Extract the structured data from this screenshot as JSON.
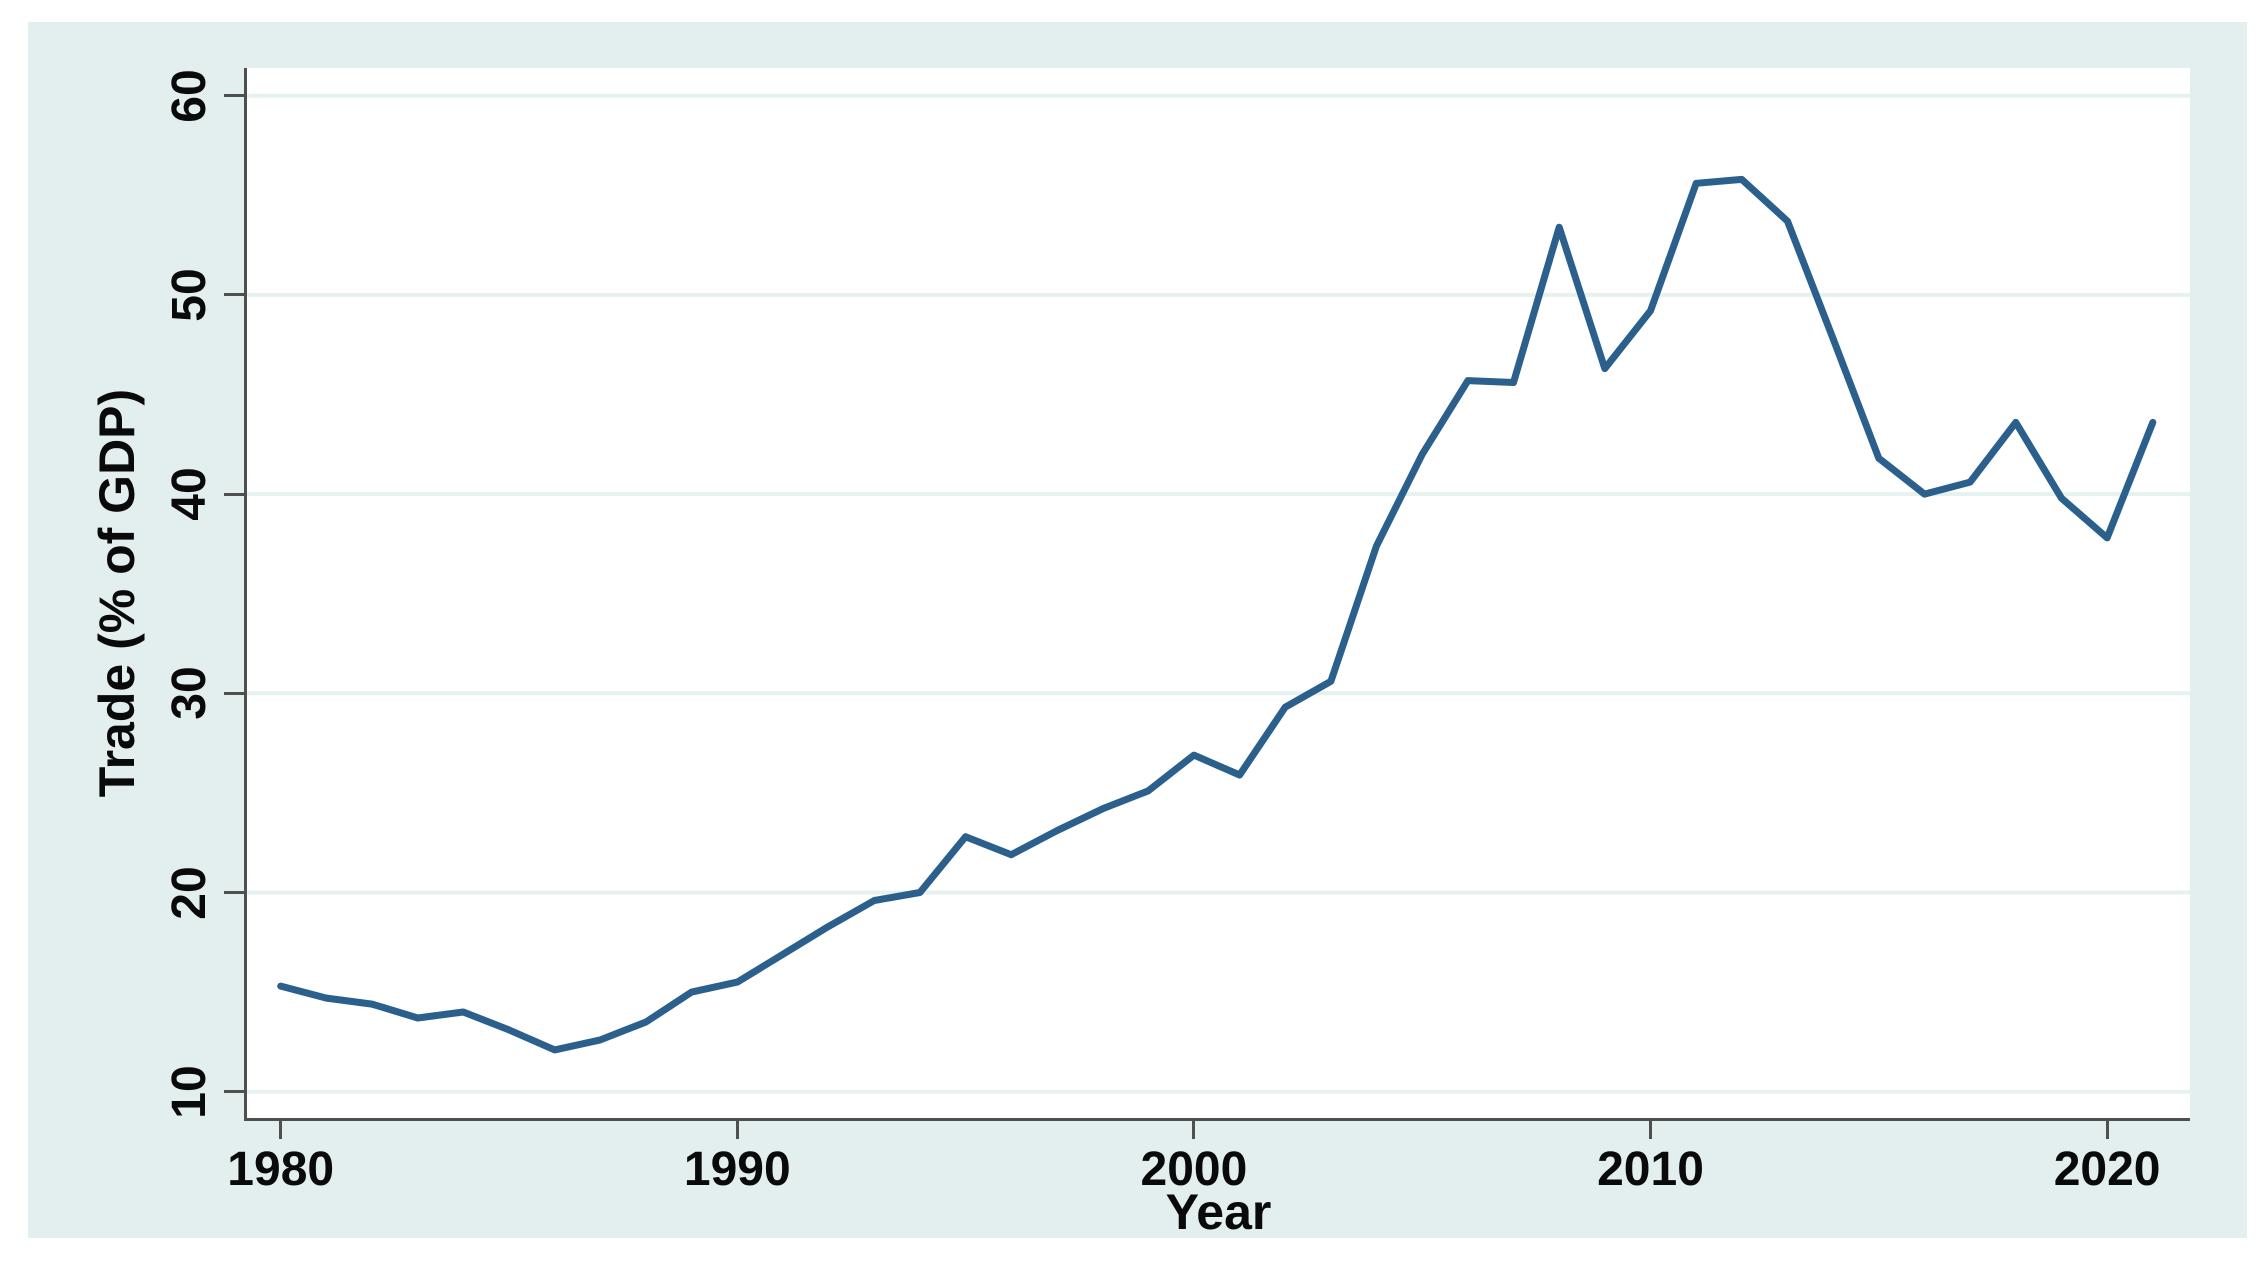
{
  "figure": {
    "outer_background_color": "#e3efef",
    "plot_background_color": "#ffffff",
    "grid_color": "#e5f2ef",
    "axis_color": "#4f4f4f",
    "text_color": "#0a0a0a",
    "line_color": "#2b5f8c"
  },
  "chart_data": {
    "type": "line",
    "title": "",
    "xlabel": "Year",
    "ylabel": "Trade (% of GDP)",
    "x": [
      1980,
      1981,
      1982,
      1983,
      1984,
      1985,
      1986,
      1987,
      1988,
      1989,
      1990,
      1991,
      1992,
      1993,
      1994,
      1995,
      1996,
      1997,
      1998,
      1999,
      2000,
      2001,
      2002,
      2003,
      2004,
      2005,
      2006,
      2007,
      2008,
      2009,
      2010,
      2011,
      2012,
      2013,
      2014,
      2015,
      2016,
      2017,
      2018,
      2019,
      2020,
      2021
    ],
    "series": [
      {
        "name": "Trade (% of GDP)",
        "values": [
          15.3,
          14.7,
          14.4,
          13.7,
          14.0,
          13.1,
          12.1,
          12.6,
          13.5,
          15.0,
          15.5,
          16.9,
          18.3,
          19.6,
          20.0,
          22.8,
          21.9,
          23.1,
          24.2,
          25.1,
          26.9,
          25.9,
          29.3,
          30.6,
          37.4,
          42.0,
          45.7,
          45.6,
          53.4,
          46.3,
          49.2,
          55.6,
          55.8,
          53.7,
          47.8,
          41.8,
          40.0,
          40.6,
          43.6,
          39.8,
          37.8,
          43.6
        ]
      }
    ],
    "xticks": [
      1980,
      1990,
      2000,
      2010,
      2020
    ],
    "yticks": [
      10,
      20,
      30,
      40,
      50,
      60
    ],
    "xlim": [
      1979.3,
      2021.8
    ],
    "ylim": [
      8.7,
      61.4
    ],
    "grid": "horizontal",
    "legend": "none"
  }
}
